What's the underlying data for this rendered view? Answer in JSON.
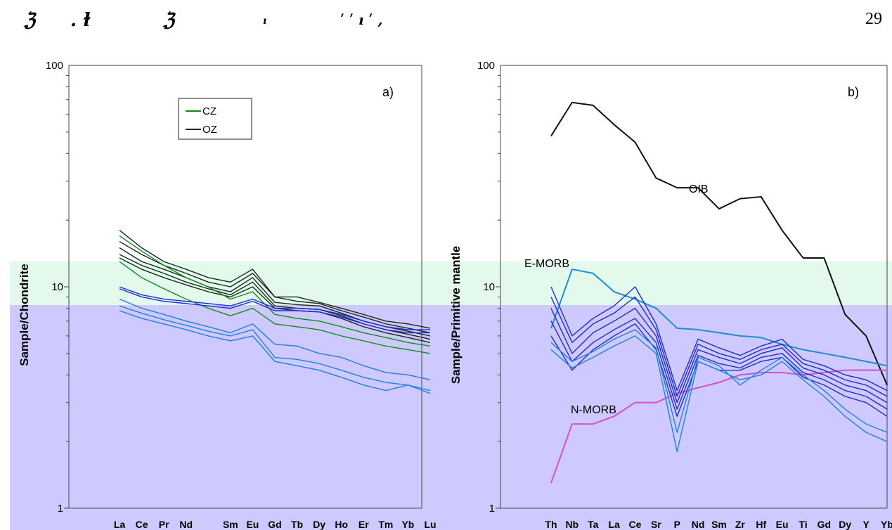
{
  "page": {
    "page_number": "29",
    "header_glyphs": [
      "ℨ",
      ". ɫ",
      "ℨ",
      "ı",
      "ʹ ʹ ı ʹ ,"
    ]
  },
  "chart_data": [
    {
      "type": "line",
      "panel_label": "a)",
      "ylabel": "Sample/Chondrite",
      "y_scale": "log",
      "ylim": [
        1,
        100
      ],
      "yticks": [
        "1",
        "10",
        "100"
      ],
      "categories": [
        "La",
        "Ce",
        "Pr",
        "Nd",
        "",
        "Sm",
        "Eu",
        "Gd",
        "Tb",
        "Dy",
        "Ho",
        "Er",
        "Tm",
        "Yb",
        "Lu"
      ],
      "legend": [
        {
          "label": "CZ",
          "color": "#138a1e"
        },
        {
          "label": "OZ",
          "color": "#222222"
        }
      ],
      "series": [
        {
          "group": "OZ",
          "color": "#1b2a1f",
          "values": [
            18,
            15,
            13,
            12,
            11,
            10.5,
            12,
            9,
            9,
            8.5,
            8,
            7.5,
            7,
            6.8,
            6.5
          ]
        },
        {
          "group": "OZ",
          "color": "#1b2a1f",
          "values": [
            16,
            14,
            12.5,
            11.5,
            10.5,
            10,
            11.5,
            9,
            8.6,
            8.4,
            7.8,
            7.3,
            6.8,
            6.5,
            6.2
          ]
        },
        {
          "group": "OZ",
          "color": "#1b2a1f",
          "values": [
            15,
            13,
            12,
            11,
            10,
            9.5,
            11,
            8.5,
            8.3,
            8.2,
            7.6,
            7,
            6.6,
            6.3,
            6
          ]
        },
        {
          "group": "OZ",
          "color": "#1b2a1f",
          "values": [
            14,
            12.5,
            11.5,
            10.5,
            9.8,
            9.2,
            10.5,
            8.2,
            8,
            7.9,
            7.4,
            6.8,
            6.4,
            6.1,
            5.8
          ]
        },
        {
          "group": "OZ",
          "color": "#1b2a1f",
          "values": [
            13.5,
            12,
            11,
            10.2,
            9.5,
            9,
            10,
            8,
            7.8,
            7.7,
            7.2,
            6.6,
            6.2,
            5.9,
            5.6
          ]
        },
        {
          "group": "CZ",
          "color": "#138a1e",
          "values": [
            17,
            14.5,
            12.5,
            11,
            10,
            8.8,
            9.5,
            7.5,
            7.2,
            7,
            6.6,
            6.2,
            5.9,
            5.6,
            5.4
          ]
        },
        {
          "group": "CZ",
          "color": "#138a1e",
          "values": [
            13,
            11,
            9.8,
            8.8,
            8,
            7.4,
            8,
            6.8,
            6.6,
            6.4,
            6,
            5.7,
            5.4,
            5.2,
            5
          ]
        },
        {
          "group": "OZ-blue",
          "color": "#1f7fe6",
          "values": [
            8.8,
            8,
            7.5,
            7,
            6.6,
            6.2,
            6.8,
            5.5,
            5.4,
            5,
            4.8,
            4.4,
            4.1,
            4,
            3.8
          ]
        },
        {
          "group": "OZ-blue",
          "color": "#1f7fe6",
          "values": [
            8.2,
            7.6,
            7.1,
            6.7,
            6.3,
            6,
            6.4,
            4.8,
            4.7,
            4.5,
            4.2,
            3.9,
            3.7,
            3.6,
            3.4
          ]
        },
        {
          "group": "OZ-blue",
          "color": "#1f7fe6",
          "values": [
            7.8,
            7.2,
            6.8,
            6.4,
            6,
            5.7,
            6,
            4.6,
            4.4,
            4.2,
            3.9,
            3.6,
            3.4,
            3.6,
            3.3
          ]
        },
        {
          "group": "OZ-violet",
          "color": "#1f2ad6",
          "values": [
            10,
            9.2,
            8.8,
            8.6,
            8.4,
            8.2,
            8.8,
            8,
            8,
            7.9,
            7.5,
            7,
            6.6,
            6.4,
            6.4
          ]
        },
        {
          "group": "OZ-violet",
          "color": "#1f2ad6",
          "values": [
            9.8,
            9,
            8.6,
            8.4,
            8.2,
            8,
            8.6,
            7.8,
            7.8,
            7.7,
            7.3,
            6.8,
            6.4,
            6.2,
            6.2
          ]
        }
      ]
    },
    {
      "type": "line",
      "panel_label": "b)",
      "ylabel": "Sample/Primitive mantle",
      "y_scale": "log",
      "ylim": [
        1,
        100
      ],
      "yticks": [
        "1",
        "10",
        "100"
      ],
      "categories": [
        "Th",
        "Nb",
        "Ta",
        "La",
        "Ce",
        "Sr",
        "P",
        "Nd",
        "Sm",
        "Zr",
        "Hf",
        "Eu",
        "Ti",
        "Gd",
        "Dy",
        "Y",
        "Yb"
      ],
      "annotations": [
        "OIB",
        "E-MORB",
        "N-MORB"
      ],
      "series": [
        {
          "name": "OIB",
          "color": "#111111",
          "values": [
            48,
            68,
            66,
            54,
            45,
            31,
            28,
            28,
            22.5,
            25,
            25.5,
            18,
            13.5,
            13.5,
            7.5,
            6,
            3.6
          ]
        },
        {
          "name": "E-MORB",
          "color": "#1b8fd0",
          "values": [
            6.5,
            12,
            11.5,
            9.5,
            8.8,
            8,
            6.5,
            6.4,
            6.2,
            6,
            5.9,
            5.5,
            5.2,
            5,
            4.8,
            4.6,
            4.4
          ]
        },
        {
          "name": "N-MORB",
          "color": "#d050d0",
          "values": [
            1.3,
            2.4,
            2.4,
            2.6,
            3,
            3,
            3.3,
            3.5,
            3.7,
            4,
            4.1,
            4.1,
            4,
            4.1,
            4.2,
            4.2,
            4.2
          ]
        },
        {
          "group": "samples",
          "color": "#1f2ad6",
          "values": [
            6,
            4.2,
            5.2,
            6,
            6.8,
            5.2,
            2.6,
            4.6,
            4.2,
            4.2,
            4.6,
            4.8,
            3.9,
            3.6,
            3.2,
            3.0,
            2.6
          ]
        },
        {
          "group": "samples",
          "color": "#1f2ad6",
          "values": [
            7,
            4.6,
            5.6,
            6.4,
            7.2,
            5.6,
            2.8,
            4.9,
            4.5,
            4.3,
            4.8,
            5,
            4.1,
            3.8,
            3.4,
            3.2,
            2.8
          ]
        },
        {
          "group": "samples",
          "color": "#1f2ad6",
          "values": [
            8,
            5,
            6.2,
            7,
            8,
            6,
            3,
            5.2,
            4.8,
            4.5,
            5,
            5.3,
            4.3,
            4,
            3.6,
            3.4,
            3
          ]
        },
        {
          "group": "samples",
          "color": "#1f2ad6",
          "values": [
            9,
            5.6,
            6.8,
            7.6,
            9,
            6.4,
            3.2,
            5.5,
            5,
            4.7,
            5.2,
            5.5,
            4.5,
            4.2,
            3.8,
            3.6,
            3.2
          ]
        },
        {
          "group": "samples",
          "color": "#1f2ad6",
          "values": [
            10,
            6,
            7.2,
            8.2,
            10,
            6.8,
            3.4,
            5.8,
            5.3,
            4.9,
            5.4,
            5.8,
            4.7,
            4.4,
            4,
            3.8,
            3.4
          ]
        },
        {
          "group": "samples-blue",
          "color": "#1f7fe6",
          "values": [
            5.2,
            4.3,
            4.8,
            5.4,
            6,
            5,
            1.8,
            4.6,
            4.2,
            3.8,
            4,
            4.6,
            3.8,
            3.2,
            2.6,
            2.2,
            2.0
          ]
        },
        {
          "group": "samples-blue",
          "color": "#1f7fe6",
          "values": [
            5.6,
            4.6,
            5.1,
            5.8,
            6.4,
            5.3,
            2.2,
            4.8,
            4.4,
            3.6,
            4.2,
            4.8,
            4,
            3.4,
            2.8,
            2.4,
            2.2
          ]
        }
      ]
    }
  ]
}
